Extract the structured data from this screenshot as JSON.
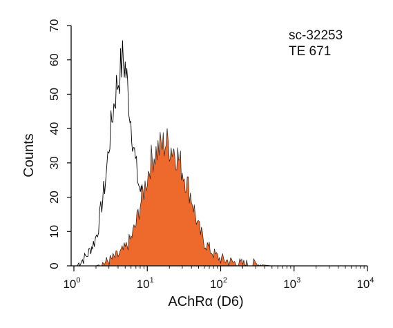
{
  "chart_data": {
    "type": "area",
    "title": "",
    "xlabel": "AChRα (D6)",
    "ylabel": "Counts",
    "x_scale": "log",
    "xlim": [
      1,
      10000
    ],
    "ylim": [
      0,
      70
    ],
    "x_ticks": [
      {
        "base": "10",
        "exp": "0",
        "value": 1
      },
      {
        "base": "10",
        "exp": "1",
        "value": 10
      },
      {
        "base": "10",
        "exp": "2",
        "value": 100
      },
      {
        "base": "10",
        "exp": "3",
        "value": 1000
      },
      {
        "base": "10",
        "exp": "4",
        "value": 10000
      }
    ],
    "y_ticks": [
      0,
      10,
      20,
      30,
      40,
      50,
      60,
      70
    ],
    "grid": false,
    "legend": "none",
    "annotations": [
      "sc-32253",
      "TE 671"
    ],
    "colors": {
      "filled": "#ee6a2c",
      "outline": "#000000"
    },
    "series": [
      {
        "style": "outline",
        "x": [
          1.0,
          1.1,
          1.2,
          1.35,
          1.5,
          1.7,
          1.9,
          2.1,
          2.4,
          2.7,
          3.0,
          3.4,
          3.8,
          4.2,
          4.6,
          5.0,
          5.4,
          5.8,
          6.3,
          6.9,
          7.6,
          8.5,
          9.5,
          11,
          13,
          15,
          18,
          22,
          27,
          33,
          40,
          50,
          60,
          80,
          100,
          130,
          200
        ],
        "y": [
          0,
          0,
          1,
          2,
          3,
          5,
          7,
          10,
          18,
          25,
          35,
          45,
          52,
          56,
          60,
          58,
          52,
          45,
          38,
          30,
          24,
          20,
          16,
          13,
          10,
          8,
          6,
          4,
          3,
          2,
          2,
          1,
          1,
          0.5,
          0.5,
          0,
          0
        ]
      },
      {
        "style": "filled",
        "x": [
          1.0,
          2.0,
          2.7,
          3.3,
          4.0,
          5.0,
          6.0,
          7.0,
          8.0,
          9.0,
          10,
          11,
          12,
          14,
          16,
          18,
          20,
          23,
          26,
          30,
          35,
          40,
          45,
          50,
          60,
          70,
          85,
          100,
          150,
          200,
          300,
          500,
          700,
          1000,
          2000
        ],
        "y": [
          0,
          0,
          1,
          2,
          3,
          5,
          8,
          12,
          18,
          22,
          26,
          30,
          32,
          34,
          35,
          36,
          35,
          34,
          32,
          28,
          24,
          20,
          15,
          11,
          7,
          5,
          3,
          2,
          1,
          0.5,
          0.5,
          0,
          0,
          0,
          0
        ]
      }
    ]
  }
}
